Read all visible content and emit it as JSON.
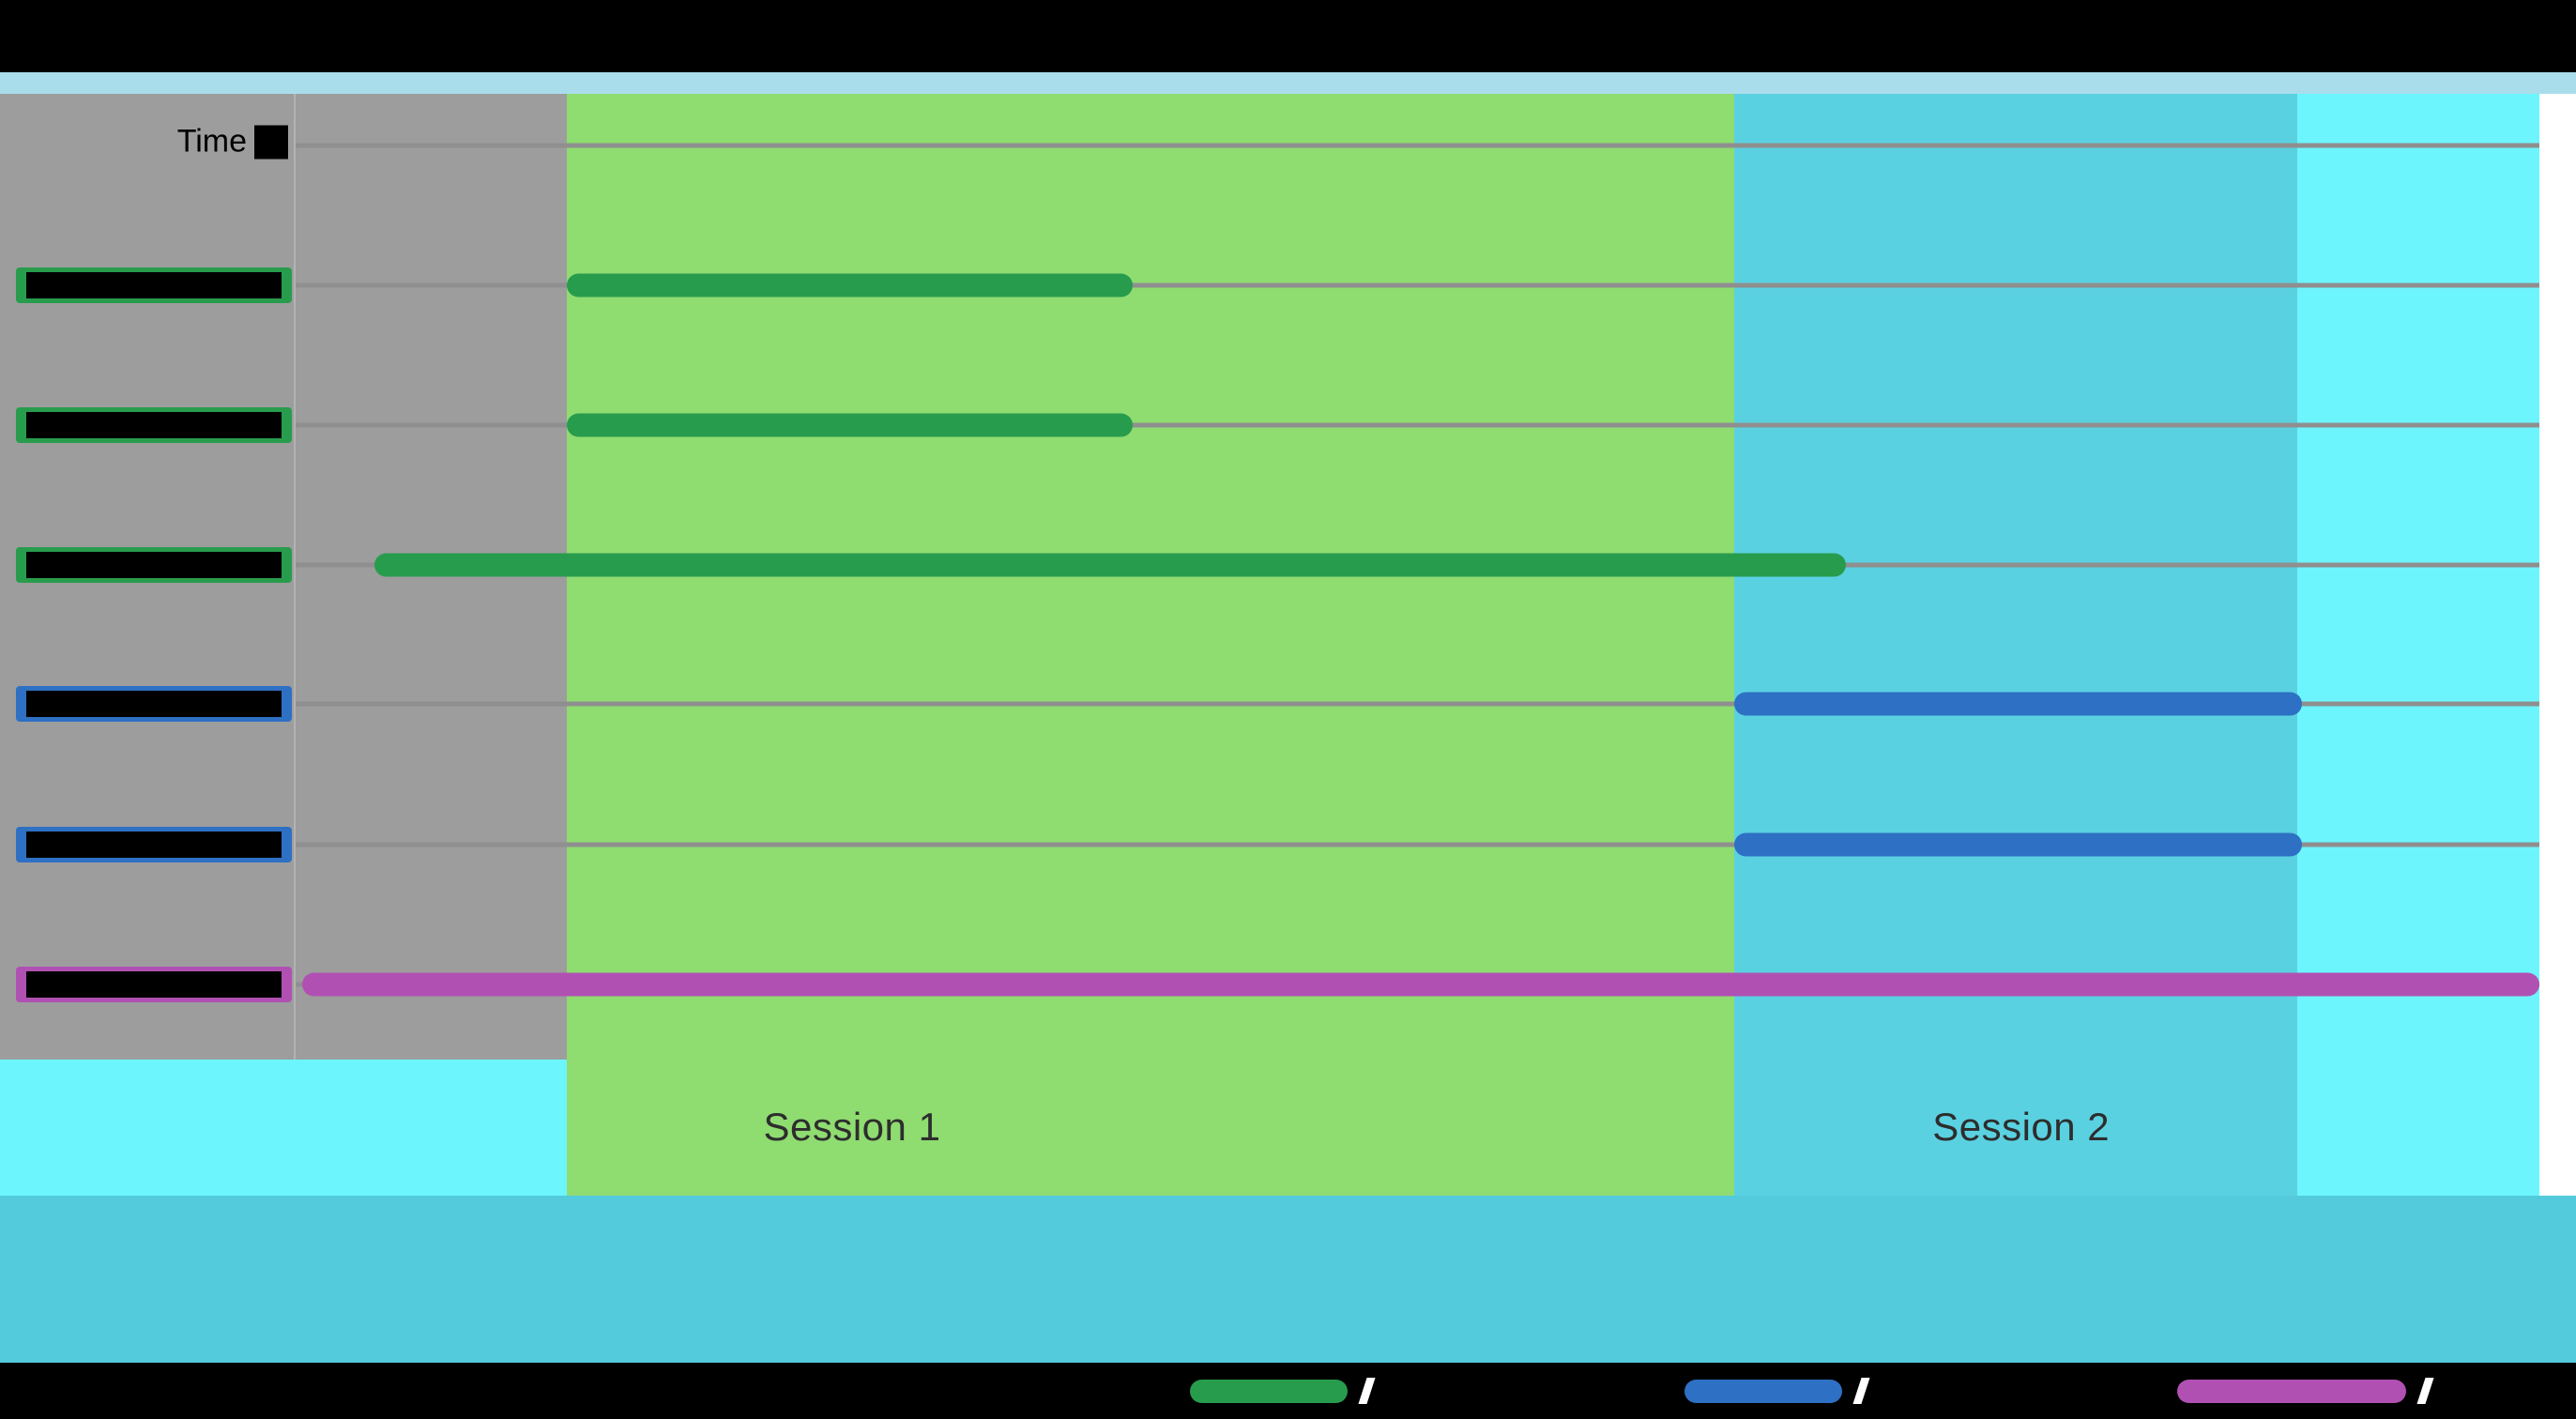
{
  "title_bar": {
    "label": "",
    "redacted": true
  },
  "axis": {
    "corner_label": "Time"
  },
  "sessions": [
    {
      "label": "Session 1"
    },
    {
      "label": "Session 2"
    }
  ],
  "colors": {
    "top_bar": "#000000",
    "top_strip": "#aaddeb",
    "row_area_gray": "#9d9d9d",
    "session1_band": "#8fdc71",
    "session2_band": "#5ad1e1",
    "right_band": "#6df5fe",
    "bottom_band": "#54cbdc",
    "footer": "#000000",
    "gridline": "#8f8f8f",
    "green_series": "#289c4d",
    "blue_series": "#2e70c3",
    "magenta_series": "#b150b3"
  },
  "chart_data": {
    "type": "bar",
    "subtype": "horizontal-gantt-timeline",
    "title": "",
    "xlabel": "Time",
    "ylabel": "",
    "grid": true,
    "x_axis_units": "unlabeled (no tick labels visible)",
    "layout": {
      "header_gridline_pct": 5.3,
      "row_center_pcts": [
        19.8,
        34.3,
        48.8,
        63.2,
        77.7,
        92.2
      ],
      "session_label_y_pct": 93.8
    },
    "regions": [
      {
        "name": "right-and-base-band",
        "label": "",
        "start_pct": 0,
        "end_pct": 100,
        "color": "#6df5fe",
        "rows_only": false
      },
      {
        "name": "pre-session-gray",
        "label": "",
        "start_pct": 0,
        "end_pct": 12.1,
        "color": "#9d9d9d",
        "rows_only": true
      },
      {
        "name": "session-1-band",
        "label": "Session 1",
        "start_pct": 12.1,
        "end_pct": 64.1,
        "color": "#8fdc71",
        "rows_only": false,
        "label_center_pct": 24.8
      },
      {
        "name": "session-2-band",
        "label": "Session 2",
        "start_pct": 64.1,
        "end_pct": 89.2,
        "color": "#5ad1e1",
        "rows_only": false,
        "label_center_pct": 76.9
      }
    ],
    "rows": [
      {
        "label": "",
        "label_redacted": true,
        "series": "green",
        "color": "#289c4d",
        "bar_start_pct": 12.1,
        "bar_end_pct": 37.3
      },
      {
        "label": "",
        "label_redacted": true,
        "series": "green",
        "color": "#289c4d",
        "bar_start_pct": 12.1,
        "bar_end_pct": 37.3
      },
      {
        "label": "",
        "label_redacted": true,
        "series": "green",
        "color": "#289c4d",
        "bar_start_pct": 3.5,
        "bar_end_pct": 69.1
      },
      {
        "label": "",
        "label_redacted": true,
        "series": "blue",
        "color": "#2e70c3",
        "bar_start_pct": 64.1,
        "bar_end_pct": 89.4
      },
      {
        "label": "",
        "label_redacted": true,
        "series": "blue",
        "color": "#2e70c3",
        "bar_start_pct": 64.1,
        "bar_end_pct": 89.4
      },
      {
        "label": "",
        "label_redacted": true,
        "series": "magenta",
        "color": "#b150b3",
        "bar_start_pct": 0.3,
        "bar_end_pct": 100
      }
    ],
    "legend": {
      "position": "bottom",
      "entries": [
        {
          "label": "",
          "label_redacted": true,
          "color": "#289c4d",
          "x_pct": 46.2,
          "width_pct": 6.1
        },
        {
          "label": "",
          "label_redacted": true,
          "color": "#2e70c3",
          "x_pct": 65.4,
          "width_pct": 6.1
        },
        {
          "label": "",
          "label_redacted": true,
          "color": "#b150b3",
          "x_pct": 84.5,
          "width_pct": 8.9
        }
      ]
    }
  }
}
